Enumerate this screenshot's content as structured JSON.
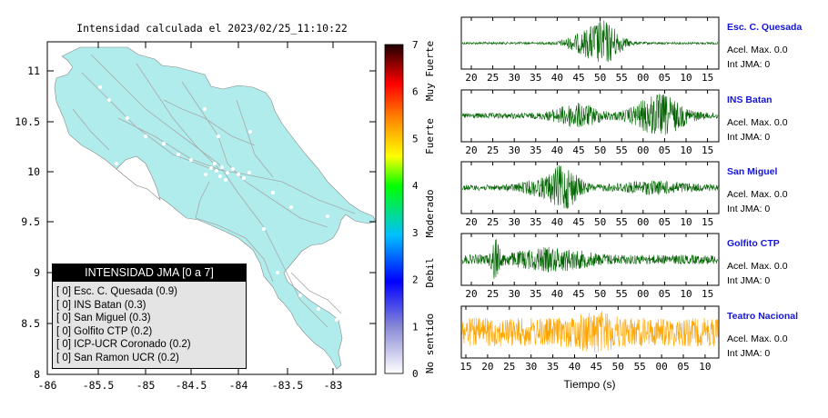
{
  "map": {
    "title": "Intensidad calculada el 2023/02/25_11:10:22",
    "xticks": [
      "-86",
      "-85.5",
      "-85",
      "-84.5",
      "-84",
      "-83.5",
      "-83"
    ],
    "yticks": [
      "11",
      "10.5",
      "10",
      "9.5",
      "9",
      "8.5",
      "8"
    ],
    "legend": {
      "title": "INTENSIDAD JMA [0 a 7]",
      "items": [
        "[ 0] Esc. C. Quesada (0.9)",
        "[ 0] INS Batan (0.3)",
        "[ 0] San Miguel (0.3)",
        "[ 0] Golfito CTP (0.2)",
        "[ 0] ICP-UCR Coronado (0.2)",
        "[ 0] San Ramon UCR (0.2)"
      ]
    },
    "colors": {
      "land": "#b0ecec",
      "water": "#ffffff",
      "roads": "#a9a9a9",
      "stations": "#ffffff"
    }
  },
  "colorbar": {
    "ticks": [
      "7",
      "6",
      "5",
      "4",
      "3",
      "2",
      "1",
      "0"
    ],
    "labels": [
      "Muy Fuerte",
      "Fuerte",
      "Moderado",
      "Debil",
      "No sentido"
    ]
  },
  "chart_data": [
    {
      "type": "line",
      "title": "Esc. C. Quesada",
      "info": [
        "Acel. Max. 0.0",
        "Int JMA: 0"
      ],
      "x_ticks": [
        "20",
        "25",
        "30",
        "35",
        "40",
        "45",
        "50",
        "55",
        "00",
        "05",
        "10",
        "15"
      ],
      "color": "#006400"
    },
    {
      "type": "line",
      "title": "INS Batan",
      "info": [
        "Acel. Max. 0.0",
        "Int JMA: 0"
      ],
      "x_ticks": [
        "20",
        "25",
        "30",
        "35",
        "40",
        "45",
        "50",
        "55",
        "00",
        "05",
        "10",
        "15"
      ],
      "color": "#006400"
    },
    {
      "type": "line",
      "title": "San Miguel",
      "info": [
        "Acel. Max. 0.0",
        "Int JMA: 0"
      ],
      "x_ticks": [
        "20",
        "25",
        "30",
        "35",
        "40",
        "45",
        "50",
        "55",
        "00",
        "05",
        "10",
        "15"
      ],
      "color": "#006400"
    },
    {
      "type": "line",
      "title": "Golfito CTP",
      "info": [
        "Acel. Max. 0.0",
        "Int JMA: 0"
      ],
      "x_ticks": [
        "20",
        "25",
        "30",
        "35",
        "40",
        "45",
        "50",
        "55",
        "00",
        "05",
        "10",
        "15"
      ],
      "color": "#006400"
    },
    {
      "type": "line",
      "title": "Teatro Nacional",
      "info": [
        "Acel. Max. 0.0",
        "Int JMA: 0"
      ],
      "x_ticks": [
        "15",
        "20",
        "25",
        "30",
        "35",
        "40",
        "45",
        "50",
        "55",
        "00",
        "05",
        "10"
      ],
      "xlabel": "Tiempo (s)",
      "color": "#ffa500"
    }
  ]
}
